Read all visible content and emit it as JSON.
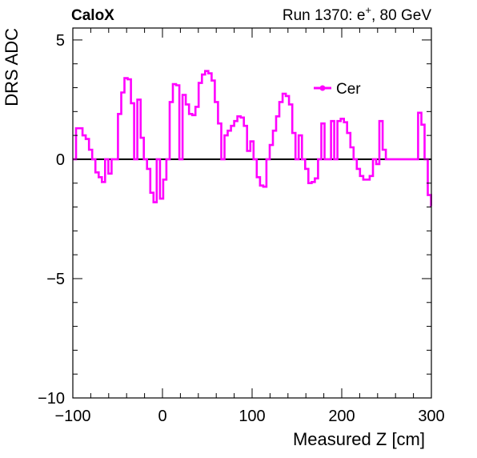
{
  "header": {
    "experiment": "CaloX",
    "run_prefix": "Run 1370: e",
    "run_sup": "+",
    "run_suffix": ", 80 GeV"
  },
  "chart_data": {
    "type": "line",
    "style": "step",
    "xlabel": "Measured Z [cm]",
    "ylabel": "DRS ADC",
    "xlim": [
      -100,
      300
    ],
    "ylim": [
      -10,
      5.5
    ],
    "xticks": [
      -100,
      0,
      100,
      200,
      300
    ],
    "xtick_labels": [
      "−100",
      "0",
      "100",
      "200",
      "300"
    ],
    "yticks": [
      -10,
      -5,
      0,
      5
    ],
    "ytick_labels": [
      "−10",
      "−5",
      "0",
      "5"
    ],
    "grid": false,
    "zero_line": true,
    "legend_position": "top-right",
    "series": [
      {
        "name": "Cer",
        "color": "#ff00ff",
        "bin_width": 3.6,
        "x_start": -100,
        "values": [
          0.0,
          1.3,
          1.3,
          1.0,
          0.85,
          0.4,
          0.0,
          -0.55,
          -0.75,
          -0.95,
          0.0,
          -0.6,
          0.0,
          0.0,
          1.9,
          2.8,
          3.4,
          3.35,
          2.35,
          0.0,
          2.5,
          0.9,
          0.0,
          -0.4,
          -1.4,
          -1.8,
          0.0,
          -1.65,
          -0.85,
          0.0,
          2.4,
          3.15,
          3.1,
          0.0,
          2.7,
          2.3,
          1.9,
          1.85,
          2.2,
          3.2,
          3.55,
          3.7,
          3.6,
          3.3,
          2.4,
          1.5,
          0.0,
          1.0,
          1.2,
          1.4,
          1.6,
          1.8,
          1.75,
          1.4,
          0.35,
          0.75,
          0.0,
          -0.75,
          -1.1,
          -1.15,
          0.0,
          0.6,
          1.2,
          1.8,
          2.4,
          2.75,
          2.65,
          2.3,
          1.1,
          0.0,
          1.0,
          0.0,
          -0.4,
          -1.0,
          -0.95,
          -0.8,
          0.0,
          1.5,
          0.0,
          0.0,
          1.6,
          0.0,
          1.6,
          1.7,
          1.55,
          1.1,
          0.5,
          0.0,
          -0.4,
          -0.7,
          -0.85,
          -0.85,
          -0.7,
          0.0,
          -0.2,
          1.6,
          0.4,
          0.0,
          0.0,
          0.0,
          0.0,
          0.0,
          0.0,
          0.0,
          0.0,
          0.0,
          0.0,
          1.95,
          1.45,
          0.0,
          -1.5,
          -1.95
        ]
      }
    ]
  }
}
